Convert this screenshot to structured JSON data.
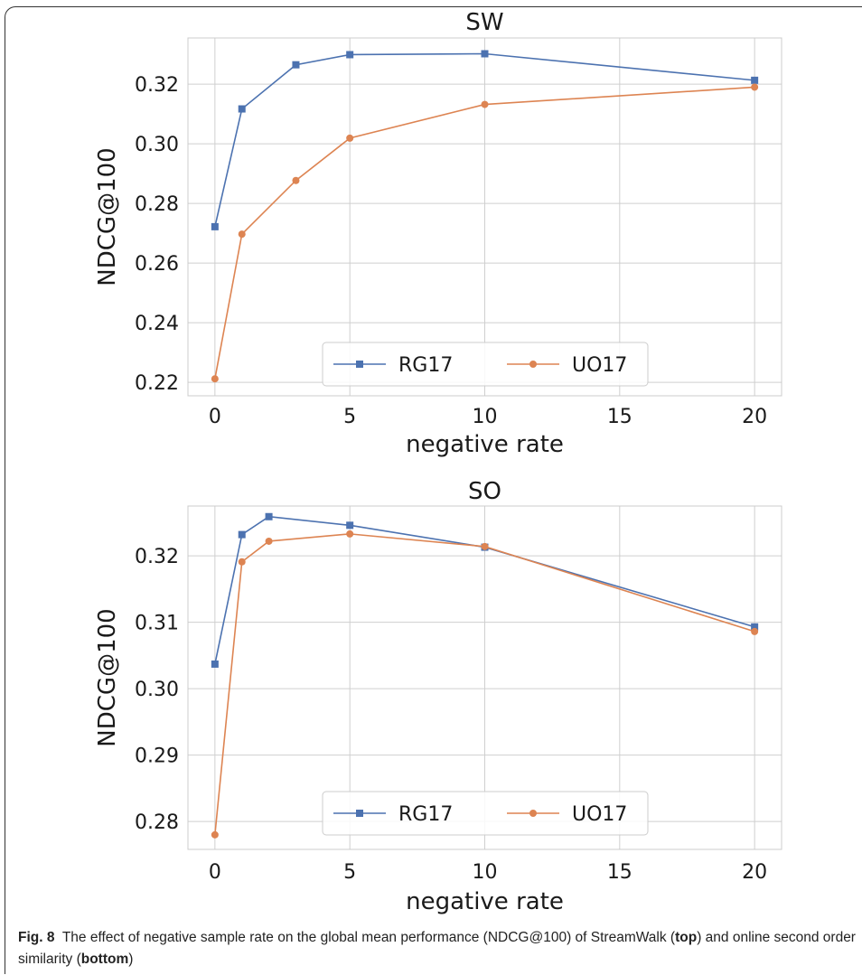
{
  "caption": {
    "label": "Fig. 8",
    "text_1": "The effect of negative sample rate on the global mean performance (NDCG@100) of StreamWalk (",
    "bold_1": "top",
    "text_2": ") and online second order similarity (",
    "bold_2": "bottom",
    "text_3": ")"
  },
  "chart_data": [
    {
      "type": "line",
      "title": "SW",
      "xlabel": "negative rate",
      "ylabel": "NDCG@100",
      "x": [
        0,
        1,
        3,
        5,
        10,
        20
      ],
      "xlim": [
        -1,
        21
      ],
      "ylim": [
        0.2155,
        0.3355
      ],
      "xticks": [
        0,
        5,
        10,
        15,
        20
      ],
      "yticks": [
        0.22,
        0.24,
        0.26,
        0.28,
        0.3,
        0.32
      ],
      "ytick_labels": [
        "0.22",
        "0.24",
        "0.26",
        "0.28",
        "0.30",
        "0.32"
      ],
      "grid": true,
      "legend_position": "lower-center",
      "series": [
        {
          "name": "RG17",
          "color": "#4c72b0",
          "marker": "square",
          "values": [
            0.2722,
            0.3117,
            0.3265,
            0.3299,
            0.3302,
            0.3213
          ]
        },
        {
          "name": "UO17",
          "color": "#dd8452",
          "marker": "circle",
          "values": [
            0.2212,
            0.2697,
            0.2877,
            0.3019,
            0.3132,
            0.319
          ]
        }
      ]
    },
    {
      "type": "line",
      "title": "SO",
      "xlabel": "negative rate",
      "ylabel": "NDCG@100",
      "x": [
        0,
        1,
        2,
        5,
        10,
        20
      ],
      "xlim": [
        -1,
        21
      ],
      "ylim": [
        0.2758,
        0.3275
      ],
      "xticks": [
        0,
        5,
        10,
        15,
        20
      ],
      "yticks": [
        0.28,
        0.29,
        0.3,
        0.31,
        0.32
      ],
      "ytick_labels": [
        "0.28",
        "0.29",
        "0.30",
        "0.31",
        "0.32"
      ],
      "grid": true,
      "legend_position": "lower-center",
      "series": [
        {
          "name": "RG17",
          "color": "#4c72b0",
          "marker": "square",
          "values": [
            0.3037,
            0.3232,
            0.3259,
            0.3246,
            0.3213,
            0.3093
          ]
        },
        {
          "name": "UO17",
          "color": "#dd8452",
          "marker": "circle",
          "values": [
            0.278,
            0.3191,
            0.3222,
            0.3233,
            0.3214,
            0.3086
          ]
        }
      ]
    }
  ]
}
